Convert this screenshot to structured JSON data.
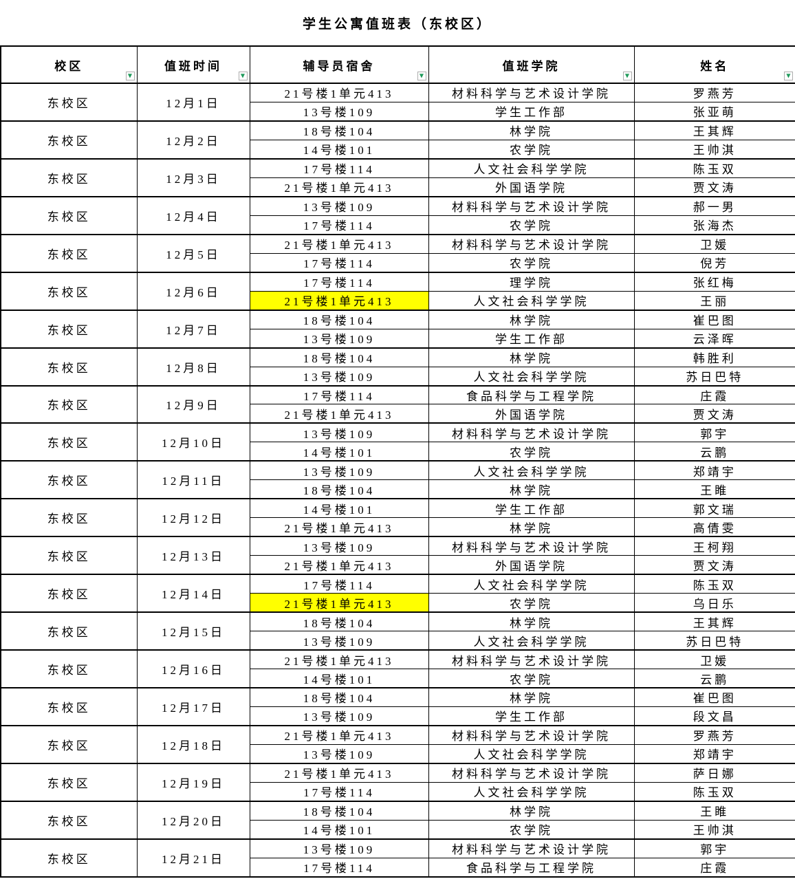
{
  "title": "学生公寓值班表（东校区）",
  "colors": {
    "highlight": "#FFFF00",
    "filter_green": "#1E9A5A",
    "border": "#000000"
  },
  "table": {
    "filter_icon": "▼",
    "headers": [
      "校区",
      "值班时间",
      "辅导员宿舍",
      "值班学院",
      "姓名"
    ],
    "groups": [
      {
        "campus": "东校区",
        "date": "12月1日",
        "rows": [
          {
            "dorm": "21号楼1单元413",
            "college": "材料科学与艺术设计学院",
            "name": "罗燕芳",
            "highlight": false
          },
          {
            "dorm": "13号楼109",
            "college": "学生工作部",
            "name": "张亚萌",
            "highlight": false
          }
        ]
      },
      {
        "campus": "东校区",
        "date": "12月2日",
        "rows": [
          {
            "dorm": "18号楼104",
            "college": "林学院",
            "name": "王其辉",
            "highlight": false
          },
          {
            "dorm": "14号楼101",
            "college": "农学院",
            "name": "王帅淇",
            "highlight": false
          }
        ]
      },
      {
        "campus": "东校区",
        "date": "12月3日",
        "rows": [
          {
            "dorm": "17号楼114",
            "college": "人文社会科学学院",
            "name": "陈玉双",
            "highlight": false
          },
          {
            "dorm": "21号楼1单元413",
            "college": "外国语学院",
            "name": "贾文涛",
            "highlight": false
          }
        ]
      },
      {
        "campus": "东校区",
        "date": "12月4日",
        "rows": [
          {
            "dorm": "13号楼109",
            "college": "材料科学与艺术设计学院",
            "name": "郝一男",
            "highlight": false
          },
          {
            "dorm": "17号楼114",
            "college": "农学院",
            "name": "张海杰",
            "highlight": false
          }
        ]
      },
      {
        "campus": "东校区",
        "date": "12月5日",
        "rows": [
          {
            "dorm": "21号楼1单元413",
            "college": "材料科学与艺术设计学院",
            "name": "卫媛",
            "highlight": false
          },
          {
            "dorm": "17号楼114",
            "college": "农学院",
            "name": "倪芳",
            "highlight": false
          }
        ]
      },
      {
        "campus": "东校区",
        "date": "12月6日",
        "rows": [
          {
            "dorm": "17号楼114",
            "college": "理学院",
            "name": "张红梅",
            "highlight": false
          },
          {
            "dorm": "21号楼1单元413",
            "college": "人文社会科学学院",
            "name": "王丽",
            "highlight": true
          }
        ]
      },
      {
        "campus": "东校区",
        "date": "12月7日",
        "rows": [
          {
            "dorm": "18号楼104",
            "college": "林学院",
            "name": "崔巴图",
            "highlight": false
          },
          {
            "dorm": "13号楼109",
            "college": "学生工作部",
            "name": "云泽晖",
            "highlight": false
          }
        ]
      },
      {
        "campus": "东校区",
        "date": "12月8日",
        "rows": [
          {
            "dorm": "18号楼104",
            "college": "林学院",
            "name": "韩胜利",
            "highlight": false
          },
          {
            "dorm": "13号楼109",
            "college": "人文社会科学学院",
            "name": "苏日巴特",
            "highlight": false
          }
        ]
      },
      {
        "campus": "东校区",
        "date": "12月9日",
        "rows": [
          {
            "dorm": "17号楼114",
            "college": "食品科学与工程学院",
            "name": "庄霞",
            "highlight": false
          },
          {
            "dorm": "21号楼1单元413",
            "college": "外国语学院",
            "name": "贾文涛",
            "highlight": false
          }
        ]
      },
      {
        "campus": "东校区",
        "date": "12月10日",
        "rows": [
          {
            "dorm": "13号楼109",
            "college": "材料科学与艺术设计学院",
            "name": "郭宇",
            "highlight": false
          },
          {
            "dorm": "14号楼101",
            "college": "农学院",
            "name": "云鹏",
            "highlight": false
          }
        ]
      },
      {
        "campus": "东校区",
        "date": "12月11日",
        "rows": [
          {
            "dorm": "13号楼109",
            "college": "人文社会科学学院",
            "name": "郑靖宇",
            "highlight": false
          },
          {
            "dorm": "18号楼104",
            "college": "林学院",
            "name": "王睢",
            "highlight": false
          }
        ]
      },
      {
        "campus": "东校区",
        "date": "12月12日",
        "rows": [
          {
            "dorm": "14号楼101",
            "college": "学生工作部",
            "name": "郭文瑞",
            "highlight": false
          },
          {
            "dorm": "21号楼1单元413",
            "college": "林学院",
            "name": "高倩雯",
            "highlight": false
          }
        ]
      },
      {
        "campus": "东校区",
        "date": "12月13日",
        "rows": [
          {
            "dorm": "13号楼109",
            "college": "材料科学与艺术设计学院",
            "name": "王柯翔",
            "highlight": false
          },
          {
            "dorm": "21号楼1单元413",
            "college": "外国语学院",
            "name": "贾文涛",
            "highlight": false
          }
        ]
      },
      {
        "campus": "东校区",
        "date": "12月14日",
        "rows": [
          {
            "dorm": "17号楼114",
            "college": "人文社会科学学院",
            "name": "陈玉双",
            "highlight": false
          },
          {
            "dorm": "21号楼1单元413",
            "college": "农学院",
            "name": "乌日乐",
            "highlight": true
          }
        ]
      },
      {
        "campus": "东校区",
        "date": "12月15日",
        "rows": [
          {
            "dorm": "18号楼104",
            "college": "林学院",
            "name": "王其辉",
            "highlight": false
          },
          {
            "dorm": "13号楼109",
            "college": "人文社会科学学院",
            "name": "苏日巴特",
            "highlight": false
          }
        ]
      },
      {
        "campus": "东校区",
        "date": "12月16日",
        "rows": [
          {
            "dorm": "21号楼1单元413",
            "college": "材料科学与艺术设计学院",
            "name": "卫媛",
            "highlight": false
          },
          {
            "dorm": "14号楼101",
            "college": "农学院",
            "name": "云鹏",
            "highlight": false
          }
        ]
      },
      {
        "campus": "东校区",
        "date": "12月17日",
        "rows": [
          {
            "dorm": "18号楼104",
            "college": "林学院",
            "name": "崔巴图",
            "highlight": false
          },
          {
            "dorm": "13号楼109",
            "college": "学生工作部",
            "name": "段文昌",
            "highlight": false
          }
        ]
      },
      {
        "campus": "东校区",
        "date": "12月18日",
        "rows": [
          {
            "dorm": "21号楼1单元413",
            "college": "材料科学与艺术设计学院",
            "name": "罗燕芳",
            "highlight": false
          },
          {
            "dorm": "13号楼109",
            "college": "人文社会科学学院",
            "name": "郑靖宇",
            "highlight": false
          }
        ]
      },
      {
        "campus": "东校区",
        "date": "12月19日",
        "rows": [
          {
            "dorm": "21号楼1单元413",
            "college": "材料科学与艺术设计学院",
            "name": "萨日娜",
            "highlight": false
          },
          {
            "dorm": "17号楼114",
            "college": "人文社会科学学院",
            "name": "陈玉双",
            "highlight": false
          }
        ]
      },
      {
        "campus": "东校区",
        "date": "12月20日",
        "rows": [
          {
            "dorm": "18号楼104",
            "college": "林学院",
            "name": "王睢",
            "highlight": false
          },
          {
            "dorm": "14号楼101",
            "college": "农学院",
            "name": "王帅淇",
            "highlight": false
          }
        ]
      },
      {
        "campus": "东校区",
        "date": "12月21日",
        "rows": [
          {
            "dorm": "13号楼109",
            "college": "材料科学与艺术设计学院",
            "name": "郭宇",
            "highlight": false
          },
          {
            "dorm": "17号楼114",
            "college": "食品科学与工程学院",
            "name": "庄霞",
            "highlight": false
          }
        ]
      }
    ]
  }
}
